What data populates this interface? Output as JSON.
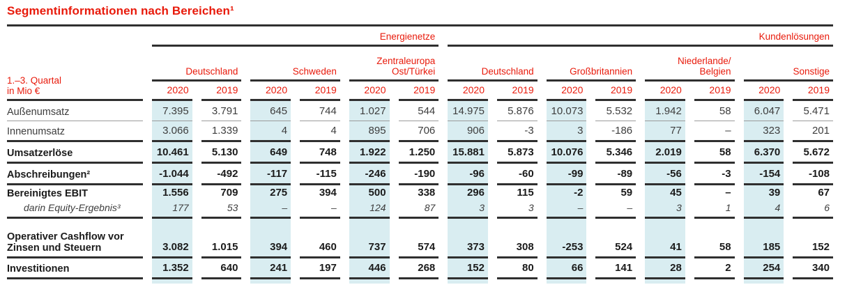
{
  "title": "Segmentinformationen nach Bereichen¹",
  "colors": {
    "accent_red": "#e81a0b",
    "highlight_2020_column": "#d9edf1",
    "rule_dark": "#2f2f2f",
    "rule_light": "#9a9a9a",
    "text_bold": "#1b1b1b",
    "text_regular": "#3d3d3d"
  },
  "table": {
    "period_label": [
      "1.–3. Quartal",
      "in Mio €"
    ],
    "groups": [
      {
        "label": "Energienetze",
        "cols": 6
      },
      {
        "label": "Kundenlösungen",
        "cols": 8
      }
    ],
    "segments": [
      {
        "label": "Deutschland",
        "lines": [
          "Deutschland"
        ]
      },
      {
        "label": "Schweden",
        "lines": [
          "Schweden"
        ]
      },
      {
        "label": "Zentraleuropa Ost/Türkei",
        "lines": [
          "Zentraleuropa",
          "Ost/Türkei"
        ]
      },
      {
        "label": "Deutschland",
        "lines": [
          "Deutschland"
        ]
      },
      {
        "label": "Großbritannien",
        "lines": [
          "Großbritannien"
        ]
      },
      {
        "label": "Niederlande/ Belgien",
        "lines": [
          "Niederlande/",
          "Belgien"
        ]
      },
      {
        "label": "Sonstige",
        "lines": [
          "Sonstige"
        ]
      }
    ],
    "year_headers": [
      "2020",
      "2019"
    ],
    "rows": [
      {
        "label": "Außenumsatz",
        "emphasis": "regular",
        "values": [
          "7.395",
          "3.791",
          "645",
          "744",
          "1.027",
          "544",
          "14.975",
          "5.876",
          "10.073",
          "5.532",
          "1.942",
          "58",
          "6.047",
          "5.471"
        ]
      },
      {
        "label": "Innenumsatz",
        "emphasis": "regular",
        "values": [
          "3.066",
          "1.339",
          "4",
          "4",
          "895",
          "706",
          "906",
          "-3",
          "3",
          "-186",
          "77",
          "–",
          "323",
          "201"
        ]
      },
      {
        "label": "Umsatzerlöse",
        "emphasis": "bold",
        "values": [
          "10.461",
          "5.130",
          "649",
          "748",
          "1.922",
          "1.250",
          "15.881",
          "5.873",
          "10.076",
          "5.346",
          "2.019",
          "58",
          "6.370",
          "5.672"
        ]
      },
      {
        "label": "Abschreibungen²",
        "emphasis": "bold",
        "values": [
          "-1.044",
          "-492",
          "-117",
          "-115",
          "-246",
          "-190",
          "-96",
          "-60",
          "-99",
          "-89",
          "-56",
          "-3",
          "-154",
          "-108"
        ]
      },
      {
        "label": "Bereinigtes EBIT",
        "emphasis": "bold",
        "sub_label": "darin Equity-Ergebnis³",
        "values": [
          "1.556",
          "709",
          "275",
          "394",
          "500",
          "338",
          "296",
          "115",
          "-2",
          "59",
          "45",
          "–",
          "39",
          "67"
        ],
        "sub_values": [
          "177",
          "53",
          "–",
          "–",
          "124",
          "87",
          "3",
          "3",
          "–",
          "–",
          "3",
          "1",
          "4",
          "6"
        ]
      },
      {
        "label": "Operativer Cashflow vor Zinsen und Steuern",
        "label_lines": [
          "Operativer Cashflow vor",
          "Zinsen und Steuern"
        ],
        "emphasis": "bold",
        "values": [
          "3.082",
          "1.015",
          "394",
          "460",
          "737",
          "574",
          "373",
          "308",
          "-253",
          "524",
          "41",
          "58",
          "185",
          "152"
        ]
      },
      {
        "label": "Investitionen",
        "emphasis": "bold",
        "values": [
          "1.352",
          "640",
          "241",
          "197",
          "446",
          "268",
          "152",
          "80",
          "66",
          "141",
          "28",
          "2",
          "254",
          "340"
        ]
      }
    ]
  }
}
